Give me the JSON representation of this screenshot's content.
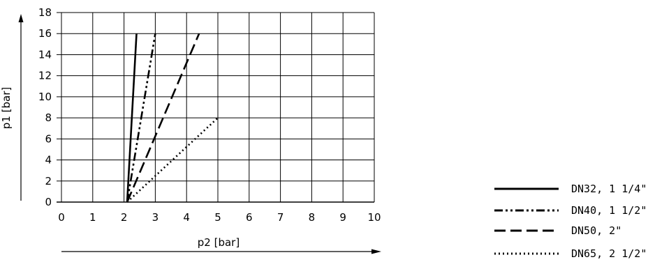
{
  "chart_data": {
    "type": "line",
    "xlabel": "p2 [bar]",
    "ylabel": "p1 [bar]",
    "xlim": [
      0,
      10
    ],
    "ylim": [
      0,
      18
    ],
    "x_ticks": [
      0,
      1,
      2,
      3,
      4,
      5,
      6,
      7,
      8,
      9,
      10
    ],
    "y_ticks": [
      0,
      2,
      4,
      6,
      8,
      10,
      12,
      14,
      16,
      18
    ],
    "grid": true,
    "legend_position": "bottom-right",
    "series": [
      {
        "name": "DN32, 1 1/4\"",
        "style": "solid",
        "points": [
          [
            2.1,
            0
          ],
          [
            2.4,
            16
          ]
        ]
      },
      {
        "name": "DN40, 1 1/2\"",
        "style": "dash-dot-dot",
        "points": [
          [
            2.1,
            0
          ],
          [
            3.0,
            16
          ]
        ]
      },
      {
        "name": "DN50, 2\"",
        "style": "dashed",
        "points": [
          [
            2.1,
            0
          ],
          [
            4.4,
            16
          ]
        ]
      },
      {
        "name": "DN65, 2 1/2\"",
        "style": "dotted",
        "points": [
          [
            2.1,
            0
          ],
          [
            5.0,
            8
          ]
        ]
      }
    ]
  }
}
